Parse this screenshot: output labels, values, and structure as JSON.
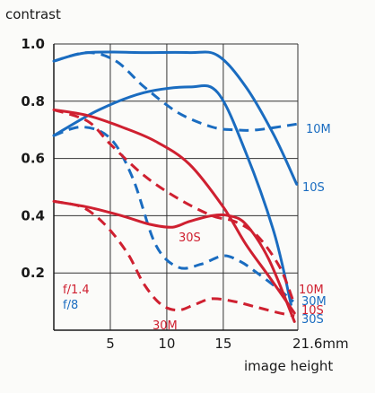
{
  "chart_data": {
    "type": "line",
    "ylabel": "contrast",
    "xlabel": "image height",
    "xlim": [
      0,
      21.6
    ],
    "ylim": [
      0,
      1.0
    ],
    "y_ticks": [
      "0.2",
      "0.4",
      "0.6",
      "0.8",
      "1.0"
    ],
    "y_tick_values": [
      0.2,
      0.4,
      0.6,
      0.8,
      1.0
    ],
    "x_ticks": [
      "5",
      "10",
      "15",
      "21.6mm"
    ],
    "x_tick_values": [
      5,
      10,
      15,
      21.6
    ],
    "grid": true,
    "colors": {
      "red": "#cf2030",
      "blue": "#1a6cc0",
      "axis": "#1a1a1a",
      "grid": "#333333"
    },
    "legend": [
      {
        "label": "f/1.4",
        "color": "#cf2030"
      },
      {
        "label": "f/8",
        "color": "#1a6cc0"
      }
    ],
    "series": [
      {
        "id": "b10s",
        "color": "#1a6cc0",
        "dash": false,
        "label": "10S",
        "x": [
          0,
          3,
          8,
          12,
          14.5,
          17,
          19.5,
          21.5
        ],
        "y": [
          0.94,
          0.97,
          0.97,
          0.97,
          0.96,
          0.85,
          0.68,
          0.51
        ]
      },
      {
        "id": "b10m",
        "color": "#1a6cc0",
        "dash": true,
        "label": "10M",
        "x": [
          0,
          3,
          5.5,
          8,
          11,
          14,
          16,
          18,
          21.5
        ],
        "y": [
          0.94,
          0.97,
          0.94,
          0.85,
          0.76,
          0.71,
          0.7,
          0.7,
          0.72
        ]
      },
      {
        "id": "b30s",
        "color": "#1a6cc0",
        "dash": false,
        "label": "30S",
        "x": [
          0,
          4,
          8,
          12,
          14.5,
          17,
          19.5,
          21
        ],
        "y": [
          0.68,
          0.77,
          0.83,
          0.85,
          0.83,
          0.62,
          0.34,
          0.09
        ]
      },
      {
        "id": "b30m",
        "color": "#1a6cc0",
        "dash": true,
        "label": "30M",
        "x": [
          0,
          2.5,
          5,
          7,
          9,
          11,
          13,
          15,
          16.5,
          18,
          20,
          21.2
        ],
        "y": [
          0.68,
          0.71,
          0.67,
          0.53,
          0.3,
          0.22,
          0.23,
          0.26,
          0.24,
          0.2,
          0.14,
          0.1
        ]
      },
      {
        "id": "r10s",
        "color": "#cf2030",
        "dash": false,
        "label": "10S",
        "x": [
          0,
          3,
          6,
          9,
          12,
          15,
          17,
          19,
          21.3
        ],
        "y": [
          0.77,
          0.75,
          0.71,
          0.66,
          0.58,
          0.43,
          0.3,
          0.19,
          0.06
        ]
      },
      {
        "id": "r10m",
        "color": "#cf2030",
        "dash": true,
        "label": "10M",
        "x": [
          0,
          3,
          5,
          8,
          11,
          14,
          16,
          18,
          20,
          21.3
        ],
        "y": [
          0.77,
          0.73,
          0.65,
          0.54,
          0.46,
          0.4,
          0.38,
          0.33,
          0.22,
          0.09
        ]
      },
      {
        "id": "r30s",
        "color": "#cf2030",
        "dash": false,
        "label": "30S",
        "x": [
          0,
          3,
          6,
          8.5,
          10.5,
          12,
          14,
          15.5,
          17,
          19,
          21.3
        ],
        "y": [
          0.45,
          0.43,
          0.4,
          0.37,
          0.36,
          0.38,
          0.4,
          0.4,
          0.37,
          0.25,
          0.03
        ]
      },
      {
        "id": "r30m",
        "color": "#cf2030",
        "dash": true,
        "label": "30M",
        "x": [
          0,
          2.5,
          4.5,
          6.5,
          8,
          9.5,
          11,
          12.5,
          14,
          16,
          18,
          20,
          21.3
        ],
        "y": [
          0.45,
          0.43,
          0.37,
          0.27,
          0.16,
          0.09,
          0.07,
          0.09,
          0.11,
          0.1,
          0.08,
          0.06,
          0.05
        ]
      }
    ],
    "annotations": [
      {
        "text": "10M",
        "color": "#1a6cc0"
      },
      {
        "text": "10S",
        "color": "#1a6cc0"
      },
      {
        "text": "30S",
        "color": "#cf2030"
      },
      {
        "text": "10M",
        "color": "#cf2030"
      },
      {
        "text": "30M",
        "color": "#1a6cc0"
      },
      {
        "text": "10S",
        "color": "#cf2030"
      },
      {
        "text": "30S",
        "color": "#1a6cc0"
      },
      {
        "text": "30M",
        "color": "#cf2030"
      }
    ]
  }
}
